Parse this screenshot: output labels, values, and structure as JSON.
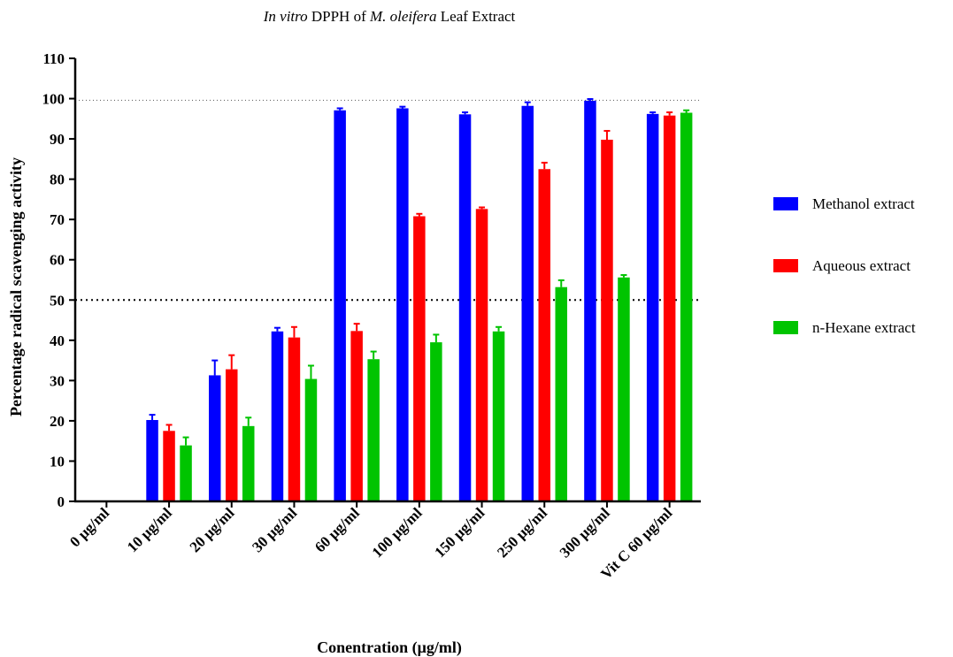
{
  "chart_data": {
    "type": "bar",
    "title_parts": [
      {
        "text": "In vitro",
        "italic": true
      },
      {
        "text": " DPPH of ",
        "italic": false
      },
      {
        "text": "M. oleifera",
        "italic": true
      },
      {
        "text": " Leaf Extract",
        "italic": false
      }
    ],
    "xlabel": "Conentration (μg/ml)",
    "ylabel": "Percentage radical scavenging activity",
    "ylim": [
      0,
      110
    ],
    "yticks": [
      0,
      10,
      20,
      30,
      40,
      50,
      60,
      70,
      80,
      90,
      100,
      110
    ],
    "categories": [
      "0 μg/ml",
      "10 μg/ml",
      "20 μg/ml",
      "30 μg/ml",
      "60 μg/ml",
      "100 μg/ml",
      "150 μg/ml",
      "250 μg/ml",
      "300 μg/ml",
      "Vit C 60 μg/ml"
    ],
    "series": [
      {
        "name": "Methanol extract",
        "color": "#0000ff",
        "values": [
          0,
          20.2,
          31.3,
          42.2,
          97.1,
          97.6,
          96.1,
          98.2,
          99.5,
          96.2
        ],
        "errors": [
          0,
          1.3,
          3.7,
          0.9,
          0.5,
          0.4,
          0.5,
          0.9,
          0.4,
          0.4
        ]
      },
      {
        "name": "Aqueous extract",
        "color": "#ff0000",
        "values": [
          0,
          17.5,
          32.8,
          40.7,
          42.3,
          70.8,
          72.6,
          82.5,
          89.8,
          95.8
        ],
        "errors": [
          0,
          1.5,
          3.5,
          2.6,
          1.8,
          0.6,
          0.4,
          1.6,
          2.2,
          0.8
        ]
      },
      {
        "name": "n-Hexane extract",
        "color": "#00c400",
        "values": [
          0,
          13.9,
          18.7,
          30.4,
          35.3,
          39.5,
          42.2,
          53.2,
          55.6,
          96.5
        ],
        "errors": [
          0,
          2.0,
          2.1,
          3.3,
          1.9,
          1.9,
          1.1,
          1.7,
          0.6,
          0.6
        ]
      }
    ],
    "reference_lines": [
      {
        "y": 50,
        "style": "dotted-bold"
      },
      {
        "y": 99.6,
        "style": "dotted-light"
      }
    ],
    "legend_position": "right",
    "grid": false
  }
}
